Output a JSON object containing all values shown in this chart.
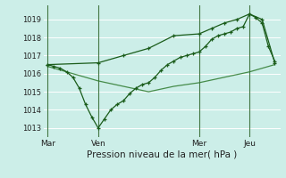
{
  "xlabel": "Pression niveau de la mer( hPa )",
  "bg_color": "#cceee8",
  "grid_color": "#ffffff",
  "line_color_dark": "#1a5c1a",
  "line_color_mid": "#2d7a2d",
  "ylim": [
    1012.5,
    1019.8
  ],
  "xlim": [
    -4,
    222
  ],
  "xtick_labels": [
    "Mar",
    "Ven",
    "Mer",
    "Jeu"
  ],
  "xtick_positions": [
    0,
    48,
    144,
    192
  ],
  "ytick_values": [
    1013,
    1014,
    1015,
    1016,
    1017,
    1018,
    1019
  ],
  "series1_x": [
    0,
    6,
    12,
    18,
    24,
    30,
    36,
    42,
    48,
    54,
    60,
    66,
    72,
    78,
    84,
    90,
    96,
    102,
    108,
    114,
    120,
    126,
    132,
    138,
    144,
    150,
    156,
    162,
    168,
    174,
    180,
    186,
    192,
    198,
    204,
    210,
    216
  ],
  "series1_y": [
    1016.5,
    1016.4,
    1016.3,
    1016.1,
    1015.8,
    1015.2,
    1014.3,
    1013.6,
    1013.0,
    1013.5,
    1014.0,
    1014.3,
    1014.5,
    1014.9,
    1015.2,
    1015.4,
    1015.5,
    1015.8,
    1016.2,
    1016.5,
    1016.7,
    1016.9,
    1017.0,
    1017.1,
    1017.2,
    1017.5,
    1017.9,
    1018.1,
    1018.2,
    1018.3,
    1018.5,
    1018.6,
    1019.3,
    1019.1,
    1018.8,
    1017.5,
    1016.7
  ],
  "series2_x": [
    0,
    24,
    48,
    72,
    96,
    120,
    144,
    168,
    192,
    216
  ],
  "series2_y": [
    1016.4,
    1016.0,
    1015.6,
    1015.3,
    1015.0,
    1015.3,
    1015.5,
    1015.8,
    1016.1,
    1016.5
  ],
  "series3_x": [
    0,
    48,
    72,
    96,
    120,
    144,
    156,
    168,
    180,
    192,
    204,
    216
  ],
  "series3_y": [
    1016.5,
    1016.6,
    1017.0,
    1017.4,
    1018.1,
    1018.2,
    1018.5,
    1018.8,
    1019.0,
    1019.3,
    1019.0,
    1016.6
  ],
  "vline_positions": [
    0,
    48,
    144,
    192
  ]
}
